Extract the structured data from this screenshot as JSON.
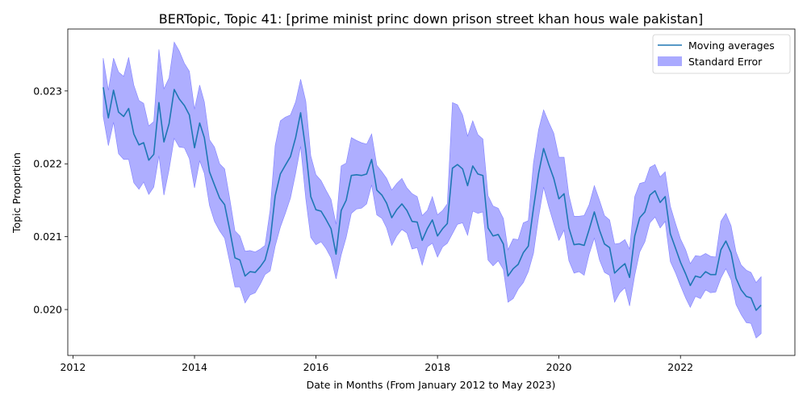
{
  "chart_data": {
    "type": "line",
    "title": "BERTopic, Topic 41: [prime minist princ down prison street khan hous wale pakistan]",
    "xlabel": "Date in Months (From January 2012 to May 2023)",
    "ylabel": "Topic Proportion",
    "xlim": [
      "2011-12-01",
      "2023-11-20"
    ],
    "ylim": [
      0.01937,
      0.02385
    ],
    "x_ticks": [
      "2012",
      "2014",
      "2016",
      "2018",
      "2020",
      "2022"
    ],
    "y_ticks": [
      "0.020",
      "0.021",
      "0.022",
      "0.023"
    ],
    "legend": {
      "placement": "top-right",
      "entries": [
        "Moving averages",
        "Standard Error"
      ]
    },
    "grid": false,
    "colors": {
      "line": "#1f77b4",
      "band": "#aaaaff",
      "band_edge": "#8080ff",
      "axes": "#000000"
    },
    "series": [
      {
        "name": "Moving averages",
        "x": [
          "2012-07",
          "2012-08",
          "2012-09",
          "2012-10",
          "2012-11",
          "2012-12",
          "2013-01",
          "2013-02",
          "2013-03",
          "2013-04",
          "2013-05",
          "2013-06",
          "2013-07",
          "2013-08",
          "2013-09",
          "2013-10",
          "2013-11",
          "2013-12",
          "2014-01",
          "2014-02",
          "2014-03",
          "2014-04",
          "2014-05",
          "2014-06",
          "2014-07",
          "2014-08",
          "2014-09",
          "2014-10",
          "2014-11",
          "2014-12",
          "2015-01",
          "2015-02",
          "2015-03",
          "2015-04",
          "2015-05",
          "2015-06",
          "2015-07",
          "2015-08",
          "2015-09",
          "2015-10",
          "2015-11",
          "2015-12",
          "2016-01",
          "2016-02",
          "2016-03",
          "2016-04",
          "2016-05",
          "2016-06",
          "2016-07",
          "2016-08",
          "2016-09",
          "2016-10",
          "2016-11",
          "2016-12",
          "2017-01",
          "2017-02",
          "2017-03",
          "2017-04",
          "2017-05",
          "2017-06",
          "2017-07",
          "2017-08",
          "2017-09",
          "2017-10",
          "2017-11",
          "2017-12",
          "2018-01",
          "2018-02",
          "2018-03",
          "2018-04",
          "2018-05",
          "2018-06",
          "2018-07",
          "2018-08",
          "2018-09",
          "2018-10",
          "2018-11",
          "2018-12",
          "2019-01",
          "2019-02",
          "2019-03",
          "2019-04",
          "2019-05",
          "2019-06",
          "2019-07",
          "2019-08",
          "2019-09",
          "2019-10",
          "2019-11",
          "2019-12",
          "2020-01",
          "2020-02",
          "2020-03",
          "2020-04",
          "2020-05",
          "2020-06",
          "2020-07",
          "2020-08",
          "2020-09",
          "2020-10",
          "2020-11",
          "2020-12",
          "2021-01",
          "2021-02",
          "2021-03",
          "2021-04",
          "2021-05",
          "2021-06",
          "2021-07",
          "2021-08",
          "2021-09",
          "2021-10",
          "2021-11",
          "2021-12",
          "2022-01",
          "2022-02",
          "2022-03",
          "2022-04",
          "2022-05",
          "2022-06",
          "2022-07",
          "2022-08",
          "2022-09",
          "2022-10",
          "2022-11",
          "2022-12",
          "2023-01",
          "2023-02",
          "2023-03",
          "2023-04",
          "2023-05"
        ],
        "values": [
          0.02305,
          0.02263,
          0.02301,
          0.02271,
          0.02265,
          0.02276,
          0.02241,
          0.02226,
          0.02229,
          0.02205,
          0.02213,
          0.02284,
          0.0223,
          0.02255,
          0.02302,
          0.02289,
          0.0228,
          0.02267,
          0.02222,
          0.02256,
          0.02236,
          0.02189,
          0.02171,
          0.02153,
          0.02144,
          0.02109,
          0.02071,
          0.02068,
          0.02046,
          0.02052,
          0.02051,
          0.02059,
          0.02068,
          0.02095,
          0.02156,
          0.02186,
          0.02198,
          0.0221,
          0.02236,
          0.0227,
          0.02219,
          0.02155,
          0.02137,
          0.02135,
          0.02124,
          0.02111,
          0.02076,
          0.02136,
          0.0215,
          0.02184,
          0.02185,
          0.02184,
          0.02186,
          0.02206,
          0.02164,
          0.02157,
          0.02146,
          0.02126,
          0.02137,
          0.02145,
          0.02136,
          0.02121,
          0.0212,
          0.02095,
          0.02111,
          0.02123,
          0.02101,
          0.02111,
          0.02118,
          0.02194,
          0.02199,
          0.02193,
          0.0217,
          0.02197,
          0.02186,
          0.02184,
          0.02112,
          0.02101,
          0.02103,
          0.0209,
          0.02046,
          0.02056,
          0.02062,
          0.02078,
          0.02087,
          0.02139,
          0.02187,
          0.02221,
          0.02199,
          0.0218,
          0.02152,
          0.02159,
          0.02112,
          0.02089,
          0.0209,
          0.02088,
          0.0211,
          0.02134,
          0.02109,
          0.0209,
          0.02085,
          0.0205,
          0.02057,
          0.02063,
          0.02044,
          0.02101,
          0.02126,
          0.02134,
          0.02157,
          0.02163,
          0.02147,
          0.02155,
          0.02104,
          0.02085,
          0.02065,
          0.02049,
          0.02033,
          0.02046,
          0.02044,
          0.02052,
          0.02048,
          0.02048,
          0.02082,
          0.02094,
          0.02078,
          0.02043,
          0.02027,
          0.02018,
          0.02016,
          0.01999,
          0.02006
        ],
        "stderr_upper": [
          0.02345,
          0.02301,
          0.02345,
          0.02326,
          0.0232,
          0.02346,
          0.02308,
          0.02287,
          0.02283,
          0.02252,
          0.02258,
          0.02357,
          0.02303,
          0.02318,
          0.02367,
          0.02355,
          0.02338,
          0.02327,
          0.02275,
          0.02308,
          0.02285,
          0.02233,
          0.02223,
          0.022,
          0.02193,
          0.02152,
          0.02108,
          0.02101,
          0.0208,
          0.02081,
          0.02079,
          0.02083,
          0.02088,
          0.02137,
          0.02225,
          0.02259,
          0.02264,
          0.02267,
          0.02285,
          0.02316,
          0.02286,
          0.02211,
          0.02185,
          0.02177,
          0.02164,
          0.02151,
          0.02117,
          0.02197,
          0.02201,
          0.02236,
          0.02232,
          0.02229,
          0.02227,
          0.02241,
          0.02198,
          0.02189,
          0.0218,
          0.02164,
          0.02173,
          0.0218,
          0.02167,
          0.02159,
          0.02155,
          0.02129,
          0.02136,
          0.02155,
          0.0213,
          0.02136,
          0.02145,
          0.02284,
          0.02281,
          0.02267,
          0.02238,
          0.02259,
          0.0224,
          0.02234,
          0.02156,
          0.02142,
          0.02139,
          0.02125,
          0.02082,
          0.02097,
          0.02096,
          0.02119,
          0.02122,
          0.02201,
          0.02247,
          0.02274,
          0.02257,
          0.02242,
          0.02209,
          0.02209,
          0.02157,
          0.02128,
          0.02128,
          0.02129,
          0.02144,
          0.0217,
          0.0215,
          0.02129,
          0.02123,
          0.0209,
          0.02091,
          0.02096,
          0.02083,
          0.02155,
          0.02173,
          0.02175,
          0.02195,
          0.02199,
          0.02182,
          0.02189,
          0.02142,
          0.02119,
          0.02097,
          0.02082,
          0.02063,
          0.02074,
          0.02073,
          0.02077,
          0.02073,
          0.02072,
          0.02121,
          0.02132,
          0.02115,
          0.02079,
          0.02061,
          0.02054,
          0.02051,
          0.02037,
          0.02045
        ],
        "stderr_lower": [
          0.02265,
          0.02225,
          0.02257,
          0.02214,
          0.02206,
          0.02206,
          0.02174,
          0.02165,
          0.02175,
          0.02158,
          0.02168,
          0.02211,
          0.02157,
          0.02192,
          0.02235,
          0.02223,
          0.02222,
          0.02207,
          0.02167,
          0.02204,
          0.02187,
          0.02143,
          0.02121,
          0.02108,
          0.02098,
          0.02065,
          0.02031,
          0.02031,
          0.02009,
          0.0202,
          0.02023,
          0.02035,
          0.02048,
          0.02053,
          0.02087,
          0.02113,
          0.02132,
          0.02153,
          0.02187,
          0.02224,
          0.02152,
          0.02099,
          0.02089,
          0.02093,
          0.02084,
          0.02071,
          0.02042,
          0.02075,
          0.02099,
          0.02132,
          0.02138,
          0.02139,
          0.02145,
          0.02171,
          0.0213,
          0.02125,
          0.02112,
          0.02088,
          0.02101,
          0.0211,
          0.02105,
          0.02083,
          0.02085,
          0.02061,
          0.02086,
          0.02091,
          0.02072,
          0.02086,
          0.02091,
          0.02104,
          0.02117,
          0.02119,
          0.02102,
          0.02135,
          0.02132,
          0.02134,
          0.02068,
          0.0206,
          0.02067,
          0.02055,
          0.0201,
          0.02015,
          0.02028,
          0.02037,
          0.02052,
          0.02077,
          0.02127,
          0.02168,
          0.02141,
          0.02118,
          0.02095,
          0.02109,
          0.02067,
          0.0205,
          0.02052,
          0.02047,
          0.02076,
          0.02098,
          0.02068,
          0.02051,
          0.02047,
          0.0201,
          0.02023,
          0.0203,
          0.02005,
          0.02047,
          0.02079,
          0.02093,
          0.02119,
          0.02127,
          0.02112,
          0.02121,
          0.02066,
          0.02051,
          0.02033,
          0.02016,
          0.02003,
          0.02018,
          0.02015,
          0.02027,
          0.02023,
          0.02024,
          0.02043,
          0.02056,
          0.02041,
          0.02007,
          0.01993,
          0.01982,
          0.01981,
          0.01961,
          0.01967
        ]
      }
    ]
  }
}
